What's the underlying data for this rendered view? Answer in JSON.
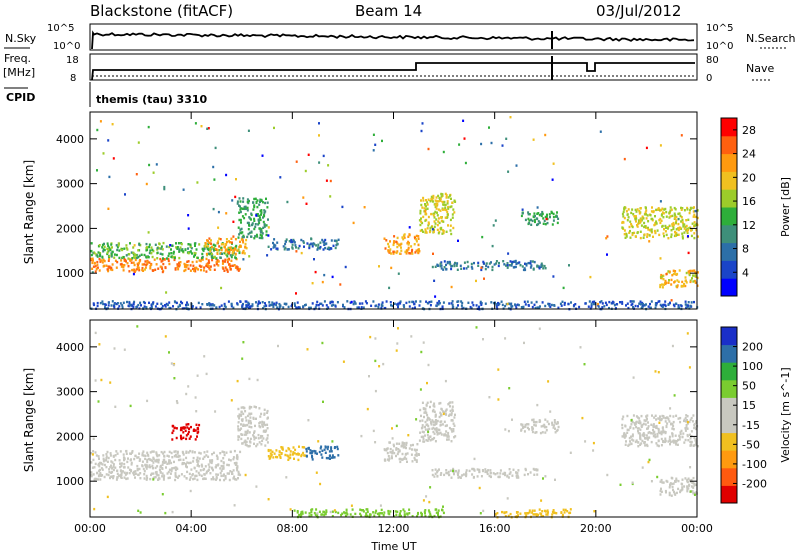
{
  "header": {
    "station": "Blackstone (fitACF)",
    "beam": "Beam 14",
    "date": "03/Jul/2012"
  },
  "noise_panel": {
    "left_label": "N.Sky",
    "left_ticks": [
      "10^5",
      "10^0"
    ],
    "right_label": "N.Search",
    "right_ticks": [
      "10^5",
      "10^0"
    ]
  },
  "freq_panel": {
    "label_line1": "Freq.",
    "label_line2": "[MHz]",
    "left_ticks": [
      "18",
      "8"
    ],
    "right_label": "Nave",
    "right_ticks": [
      "80",
      "0"
    ]
  },
  "cpid_panel": {
    "label": "CPID",
    "text": "themis (tau) 3310"
  },
  "colors": {
    "power": [
      "#0000ff",
      "#1a44c8",
      "#2c6fa8",
      "#3e8f7a",
      "#2eae3a",
      "#9ccc2a",
      "#f0c020",
      "#ff9a10",
      "#ff6010",
      "#ff0000"
    ],
    "velocity": [
      "#e00000",
      "#ff5a10",
      "#ff9a10",
      "#f0c020",
      "#c8c8c0",
      "#c8c8c0",
      "#7acc30",
      "#2eae3a",
      "#2d6fa8",
      "#1a2fc8"
    ],
    "ground_scatter": "#c8c8c0"
  },
  "chart_data": [
    {
      "type": "heatmap",
      "panel": "power",
      "xlabel": "Time UT",
      "ylabel": "Slant Range [km]",
      "xlim": [
        0,
        24
      ],
      "ylim": [
        200,
        4600
      ],
      "x_ticks": [
        "00:00",
        "04:00",
        "08:00",
        "12:00",
        "16:00",
        "20:00",
        "00:00"
      ],
      "y_ticks": [
        1000,
        2000,
        3000,
        4000
      ],
      "colorbar_label": "Power [dB]",
      "colorbar_ticks": [
        4,
        8,
        12,
        16,
        20,
        24,
        28
      ],
      "colorbar_range": [
        0,
        30
      ],
      "scatter_regions": [
        {
          "t_start": 0.0,
          "t_end": 5.9,
          "r_start": 1050,
          "r_end": 1350,
          "level": 24
        },
        {
          "t_start": 0.0,
          "t_end": 5.9,
          "r_start": 1350,
          "r_end": 1700,
          "level": 14
        },
        {
          "t_start": 4.5,
          "t_end": 6.2,
          "r_start": 1450,
          "r_end": 1800,
          "level": 22
        },
        {
          "t_start": 5.8,
          "t_end": 7.0,
          "r_start": 1800,
          "r_end": 2700,
          "level": 12
        },
        {
          "t_start": 7.0,
          "t_end": 9.8,
          "r_start": 1550,
          "r_end": 1800,
          "level": 8
        },
        {
          "t_start": 11.6,
          "t_end": 13.0,
          "r_start": 1450,
          "r_end": 1900,
          "level": 22
        },
        {
          "t_start": 13.0,
          "t_end": 14.4,
          "r_start": 1900,
          "r_end": 2800,
          "level": 18
        },
        {
          "t_start": 13.5,
          "t_end": 18.0,
          "r_start": 1100,
          "r_end": 1300,
          "level": 8
        },
        {
          "t_start": 17.0,
          "t_end": 18.5,
          "r_start": 2100,
          "r_end": 2400,
          "level": 12
        },
        {
          "t_start": 21.0,
          "t_end": 24.0,
          "r_start": 1800,
          "r_end": 2500,
          "level": 18
        },
        {
          "t_start": 22.5,
          "t_end": 24.0,
          "r_start": 700,
          "r_end": 1100,
          "level": 20
        },
        {
          "t_start": 0.0,
          "t_end": 24.0,
          "r_start": 220,
          "r_end": 400,
          "level": 6
        }
      ]
    },
    {
      "type": "heatmap",
      "panel": "velocity",
      "xlabel": "Time UT",
      "ylabel": "Slant Range [km]",
      "xlim": [
        0,
        24
      ],
      "ylim": [
        200,
        4600
      ],
      "x_ticks": [
        "00:00",
        "04:00",
        "08:00",
        "12:00",
        "16:00",
        "20:00",
        "00:00"
      ],
      "y_ticks": [
        1000,
        2000,
        3000,
        4000
      ],
      "colorbar_label": "Velocity [m s^-1]",
      "colorbar_ticks": [
        -200,
        -100,
        -50,
        -15,
        15,
        50,
        100,
        200
      ],
      "colorbar_range": [
        -250,
        250
      ],
      "scatter_regions": [
        {
          "t_start": 0.0,
          "t_end": 5.9,
          "r_start": 1050,
          "r_end": 1700,
          "level": 0
        },
        {
          "t_start": 3.2,
          "t_end": 4.3,
          "r_start": 1950,
          "r_end": 2300,
          "level": -220
        },
        {
          "t_start": 5.8,
          "t_end": 7.0,
          "r_start": 1800,
          "r_end": 2700,
          "level": 0
        },
        {
          "t_start": 7.0,
          "t_end": 8.5,
          "r_start": 1500,
          "r_end": 1800,
          "level": -40
        },
        {
          "t_start": 8.5,
          "t_end": 9.8,
          "r_start": 1500,
          "r_end": 1800,
          "level": 120
        },
        {
          "t_start": 11.6,
          "t_end": 13.0,
          "r_start": 1450,
          "r_end": 1900,
          "level": 0
        },
        {
          "t_start": 13.0,
          "t_end": 14.4,
          "r_start": 1900,
          "r_end": 2800,
          "level": 0
        },
        {
          "t_start": 13.5,
          "t_end": 18.0,
          "r_start": 1100,
          "r_end": 1300,
          "level": 0
        },
        {
          "t_start": 17.0,
          "t_end": 18.5,
          "r_start": 2100,
          "r_end": 2400,
          "level": 0
        },
        {
          "t_start": 21.0,
          "t_end": 24.0,
          "r_start": 1800,
          "r_end": 2500,
          "level": 0
        },
        {
          "t_start": 22.5,
          "t_end": 24.0,
          "r_start": 700,
          "r_end": 1100,
          "level": 0
        },
        {
          "t_start": 8.0,
          "t_end": 14.0,
          "r_start": 220,
          "r_end": 400,
          "level": 40
        },
        {
          "t_start": 16.0,
          "t_end": 19.0,
          "r_start": 220,
          "r_end": 400,
          "level": -30
        }
      ]
    }
  ]
}
